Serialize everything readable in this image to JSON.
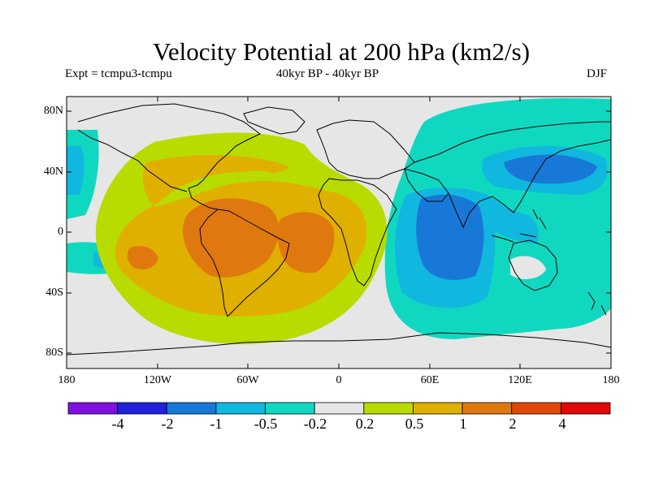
{
  "title": "Velocity Potential at 200 hPa (km2/s)",
  "subtitle_left": "Expt = tcmpu3-tcmpu",
  "subtitle_mid": "40kyr BP - 40kyr BP",
  "subtitle_right": "DJF",
  "map": {
    "projection": "equirectangular",
    "lon_range": [
      -180,
      180
    ],
    "lat_range": [
      -90,
      90
    ],
    "y_tick_labels": [
      "80N",
      "40N",
      "0",
      "40S",
      "80S"
    ],
    "x_tick_labels": [
      "180",
      "120W",
      "60W",
      "0",
      "60E",
      "120E",
      "180"
    ],
    "background_color": "#e6e6e6",
    "coastline_color": "#000000"
  },
  "colorbar": {
    "colors": [
      "#8010e0",
      "#2020d8",
      "#1878d8",
      "#10b8e0",
      "#10d8c0",
      "#e6e6e6",
      "#b8dc00",
      "#e0b000",
      "#e07810",
      "#e04808",
      "#e00808"
    ],
    "labels": [
      "-4",
      "-2",
      "-1",
      "-0.5",
      "-0.2",
      "0.2",
      "0.5",
      "1",
      "2",
      "4"
    ]
  }
}
